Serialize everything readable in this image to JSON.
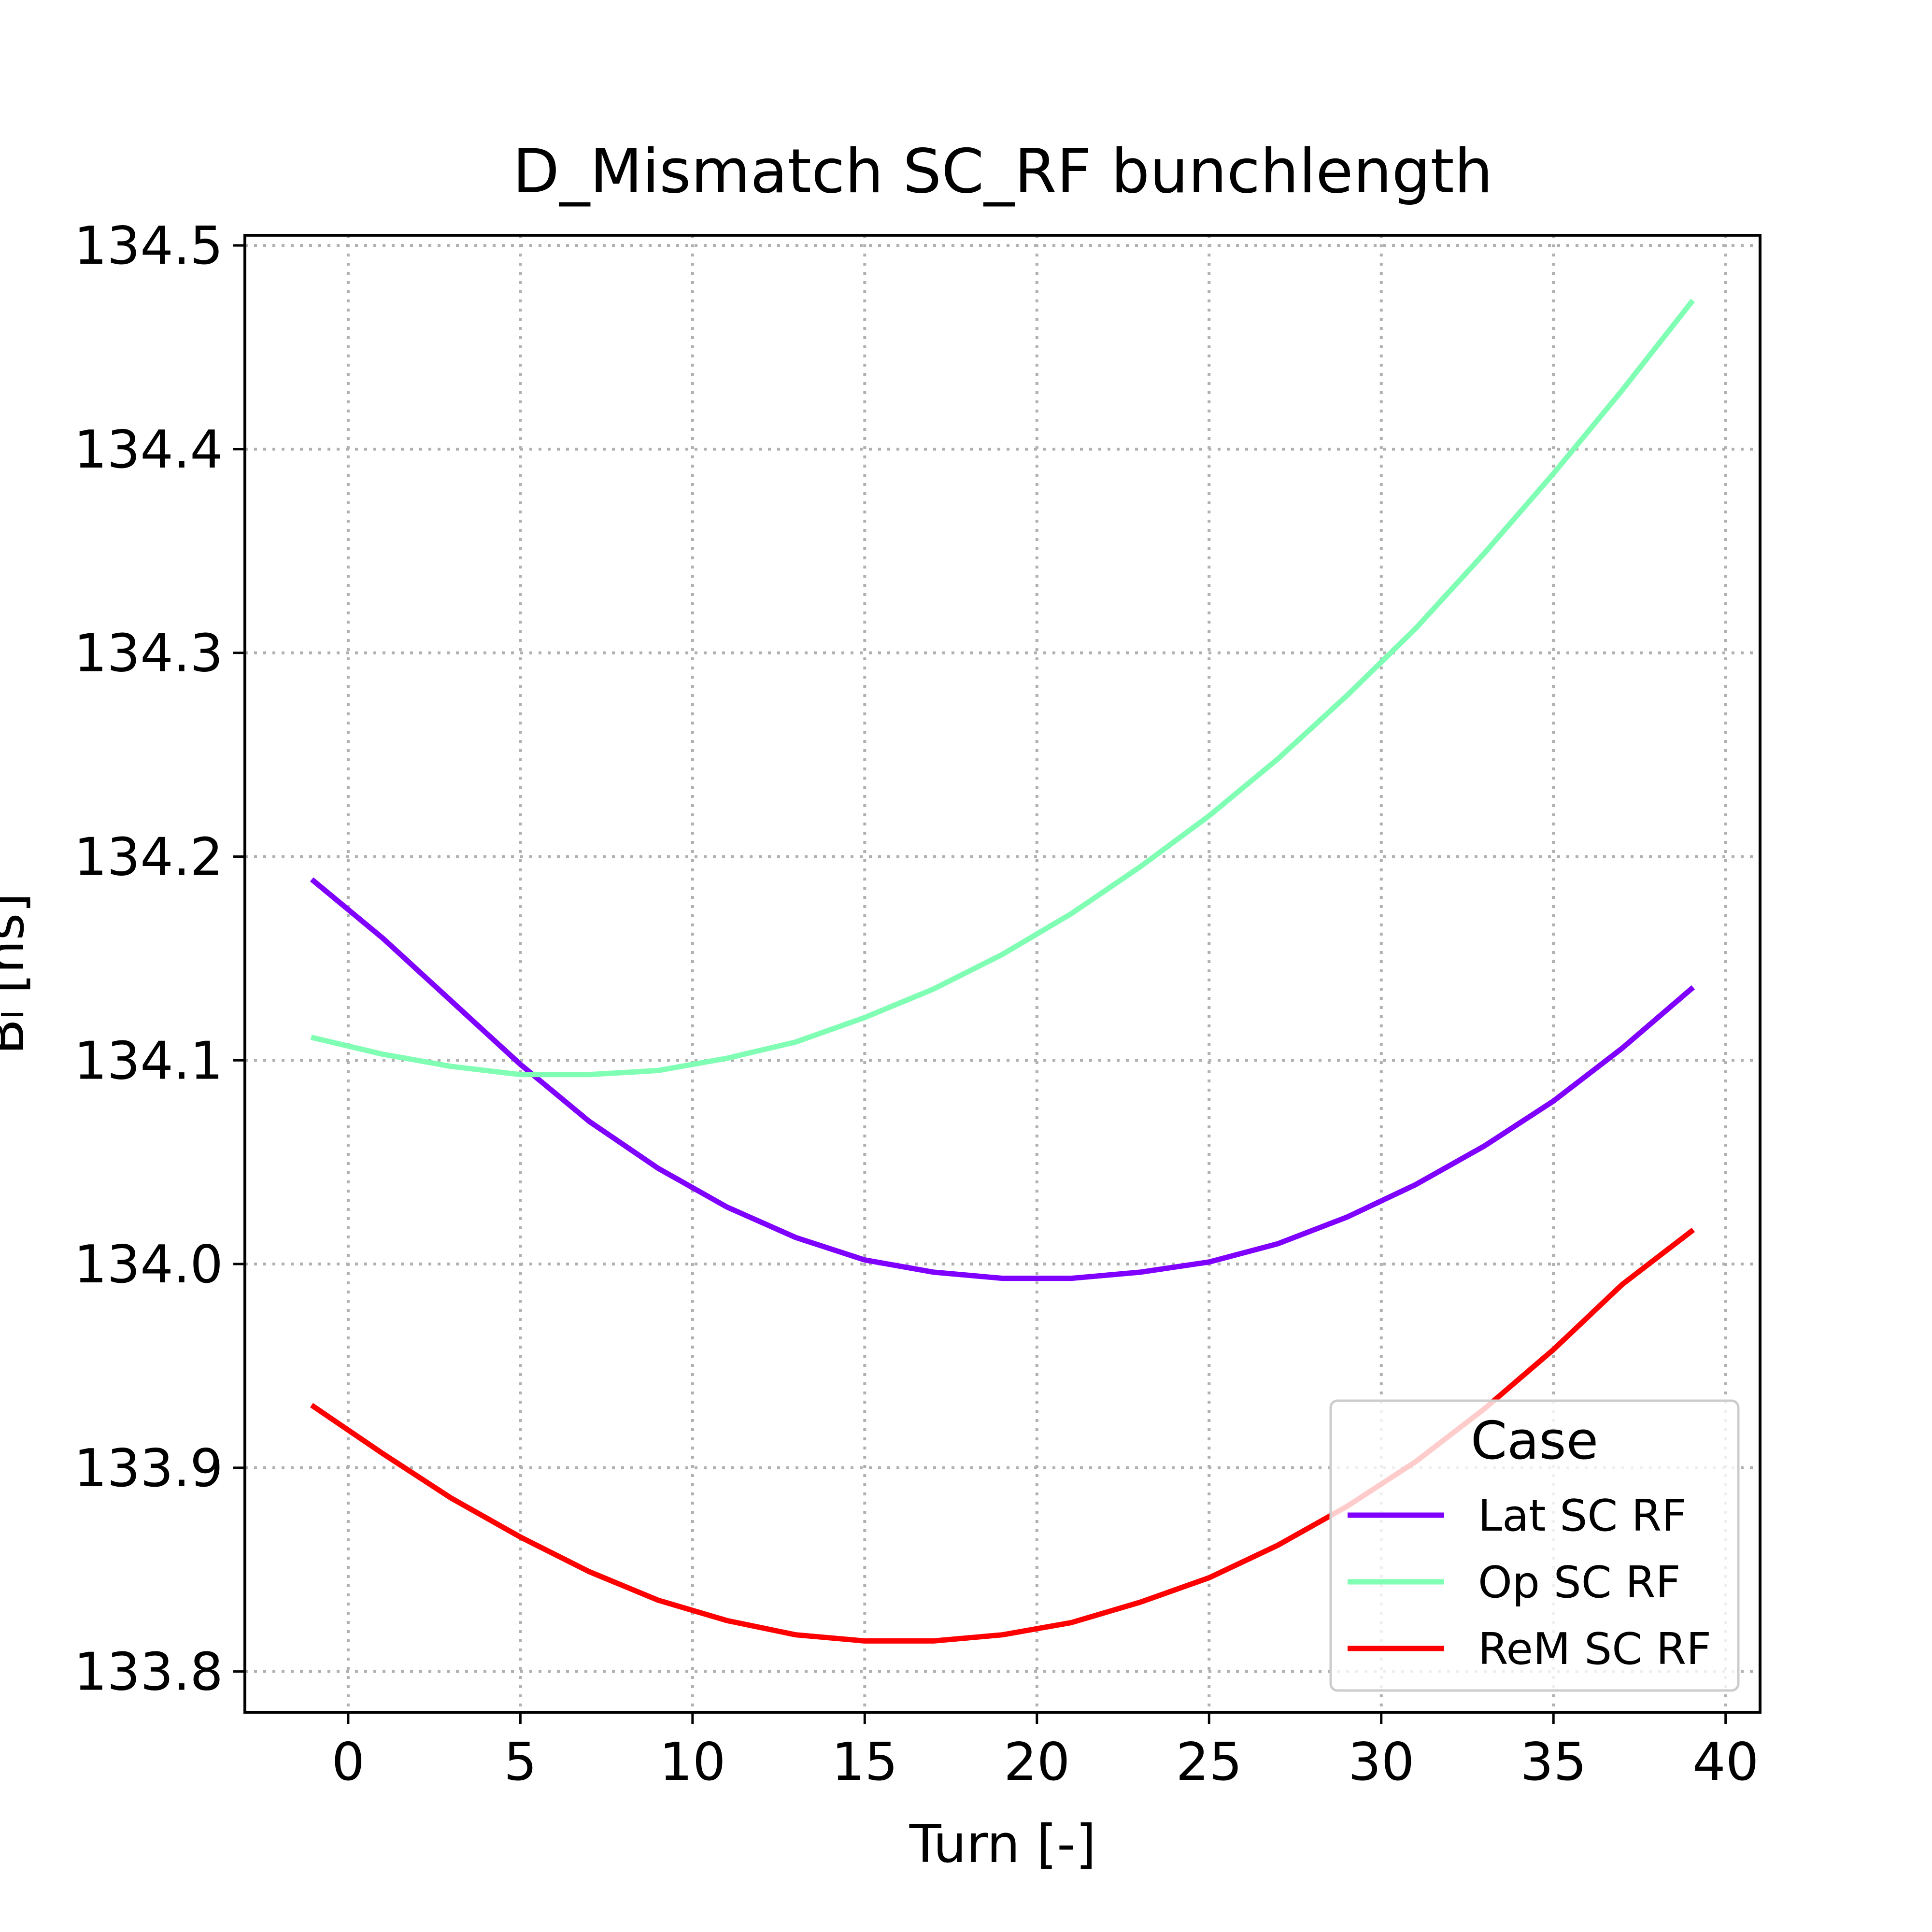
{
  "chart_data": {
    "type": "line",
    "title": "D_Mismatch SC_RF bunchlength",
    "xlabel": "Turn [-]",
    "ylabel": "Bₗ [ns]",
    "xlim": [
      -3,
      41
    ],
    "ylim": [
      133.78,
      134.505
    ],
    "xticks": [
      0,
      5,
      10,
      15,
      20,
      25,
      30,
      35,
      40
    ],
    "xtick_labels": [
      "0",
      "5",
      "10",
      "15",
      "20",
      "25",
      "30",
      "35",
      "40"
    ],
    "yticks": [
      133.8,
      133.9,
      134.0,
      134.1,
      134.2,
      134.3,
      134.4,
      134.5
    ],
    "ytick_labels": [
      "133.8",
      "133.9",
      "134.0",
      "134.1",
      "134.2",
      "134.3",
      "134.4",
      "134.5"
    ],
    "grid": true,
    "legend": {
      "title": "Case",
      "position": "lower-right"
    },
    "x": [
      -1,
      1,
      3,
      5,
      7,
      9,
      11,
      13,
      15,
      17,
      19,
      21,
      23,
      25,
      27,
      29,
      31,
      33,
      35,
      37,
      39
    ],
    "series": [
      {
        "name": "Lat SC RF",
        "color": "#7f00ff",
        "values": [
          134.188,
          134.16,
          134.129,
          134.098,
          134.07,
          134.047,
          134.028,
          134.013,
          134.002,
          133.996,
          133.993,
          133.993,
          133.996,
          134.001,
          134.01,
          134.023,
          134.039,
          134.058,
          134.08,
          134.106,
          134.135
        ]
      },
      {
        "name": "Op SC RF",
        "color": "#80ffb4",
        "values": [
          134.111,
          134.103,
          134.097,
          134.093,
          134.093,
          134.095,
          134.101,
          134.109,
          134.121,
          134.135,
          134.152,
          134.172,
          134.195,
          134.22,
          134.248,
          134.279,
          134.312,
          134.349,
          134.388,
          134.429,
          134.472
        ]
      },
      {
        "name": "ReM SC RF",
        "color": "#ff0000",
        "values": [
          133.93,
          133.907,
          133.885,
          133.866,
          133.849,
          133.835,
          133.825,
          133.818,
          133.815,
          133.815,
          133.818,
          133.824,
          133.834,
          133.846,
          133.862,
          133.881,
          133.903,
          133.929,
          133.958,
          133.99,
          134.016
        ]
      }
    ]
  }
}
